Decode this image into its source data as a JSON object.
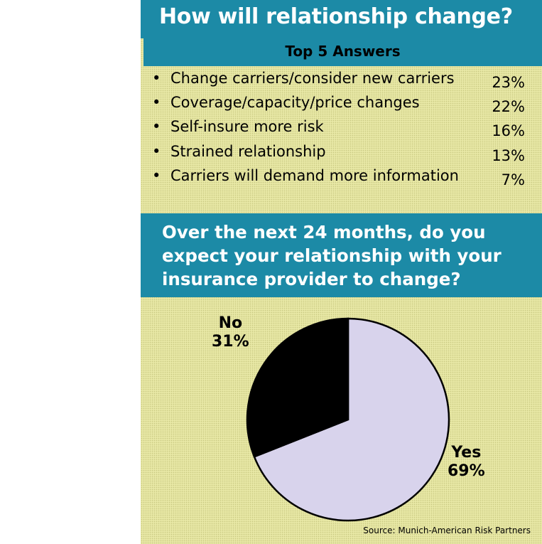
{
  "colors": {
    "banner": "#1c8aa6",
    "panel_background": "#e8e8a6",
    "slice_yes": "#d8d3ec",
    "slice_no": "#000000"
  },
  "top_section": {
    "title": "How will relationship change?",
    "subtitle": "Top 5 Answers",
    "bullet": "•"
  },
  "chart_data": [
    {
      "type": "table",
      "title": "How will relationship change?",
      "subtitle": "Top 5 Answers",
      "rows": [
        {
          "label": "Change carriers/consider new carriers",
          "value": "23%"
        },
        {
          "label": "Coverage/capacity/price changes",
          "value": "22%"
        },
        {
          "label": "Self-insure more risk",
          "value": "16%"
        },
        {
          "label": "Strained relationship",
          "value": "13%"
        },
        {
          "label": "Carriers will demand more information",
          "value": "7%"
        }
      ]
    },
    {
      "type": "pie",
      "title": "Over the next 24 months, do you expect your relationship with your insurance provider to change?",
      "slices": [
        {
          "label": "Yes",
          "value": 69,
          "display": "69%",
          "color": "#d8d3ec"
        },
        {
          "label": "No",
          "value": 31,
          "display": "31%",
          "color": "#000000"
        }
      ]
    }
  ],
  "bottom_section": {
    "question": "Over the next 24 months, do you expect your relationship with your insurance provider to change?"
  },
  "source": "Source: Munich-American Risk Partners"
}
